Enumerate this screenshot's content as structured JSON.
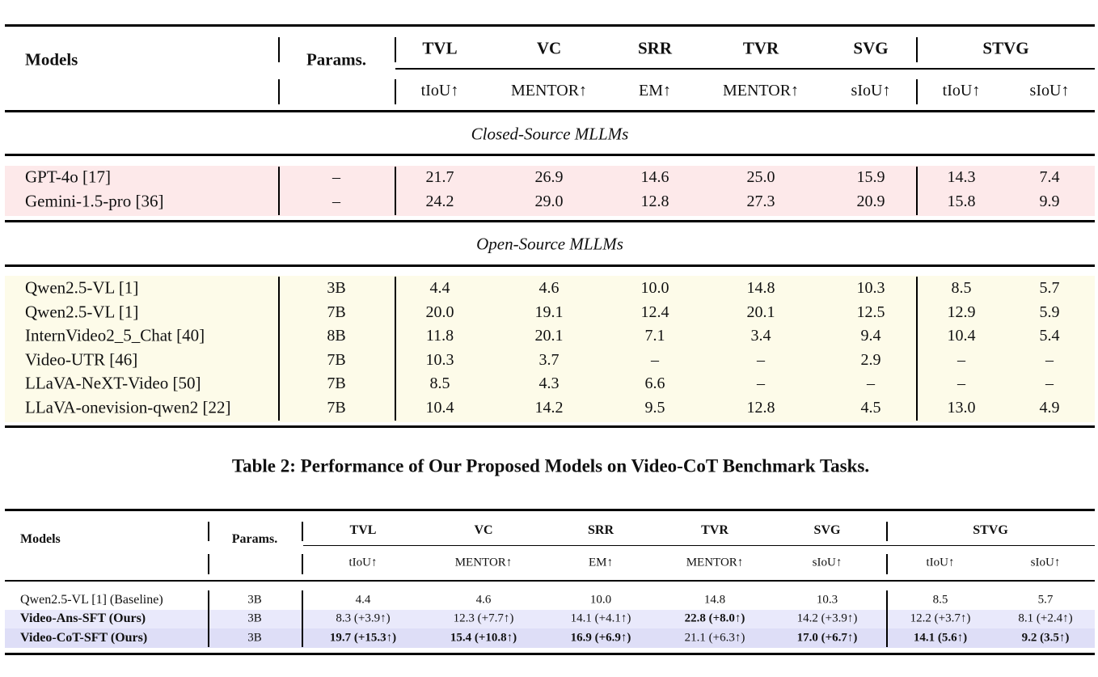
{
  "table1": {
    "head": {
      "models": "Models",
      "params": "Params.",
      "tasks": [
        "TVL",
        "VC",
        "SRR",
        "TVR",
        "SVG",
        "STVG"
      ],
      "metrics": [
        "tIoU↑",
        "MENTOR↑",
        "EM↑",
        "MENTOR↑",
        "sIoU↑",
        "tIoU↑",
        "sIoU↑"
      ]
    },
    "sections": [
      {
        "title": "Closed-Source MLLMs",
        "color": "#fde9ea",
        "rows": [
          {
            "model": "GPT-4o [17]",
            "params": "–",
            "vals": [
              "21.7",
              "26.9",
              "14.6",
              "25.0",
              "15.9",
              "14.3",
              "7.4"
            ]
          },
          {
            "model": "Gemini-1.5-pro [36]",
            "params": "–",
            "vals": [
              "24.2",
              "29.0",
              "12.8",
              "27.3",
              "20.9",
              "15.8",
              "9.9"
            ]
          }
        ]
      },
      {
        "title": "Open-Source MLLMs",
        "color": "#fdfbe9",
        "rows": [
          {
            "model": "Qwen2.5-VL [1]",
            "params": "3B",
            "vals": [
              "4.4",
              "4.6",
              "10.0",
              "14.8",
              "10.3",
              "8.5",
              "5.7"
            ]
          },
          {
            "model": "Qwen2.5-VL [1]",
            "params": "7B",
            "vals": [
              "20.0",
              "19.1",
              "12.4",
              "20.1",
              "12.5",
              "12.9",
              "5.9"
            ]
          },
          {
            "model": "InternVideo2_5_Chat [40]",
            "params": "8B",
            "vals": [
              "11.8",
              "20.1",
              "7.1",
              "3.4",
              "9.4",
              "10.4",
              "5.4"
            ]
          },
          {
            "model": "Video-UTR [46]",
            "params": "7B",
            "vals": [
              "10.3",
              "3.7",
              "–",
              "–",
              "2.9",
              "–",
              "–"
            ]
          },
          {
            "model": "LLaVA-NeXT-Video [50]",
            "params": "7B",
            "vals": [
              "8.5",
              "4.3",
              "6.6",
              "–",
              "–",
              "–",
              "–"
            ]
          },
          {
            "model": "LLaVA-onevision-qwen2 [22]",
            "params": "7B",
            "vals": [
              "10.4",
              "14.2",
              "9.5",
              "12.8",
              "4.5",
              "13.0",
              "4.9"
            ]
          }
        ]
      }
    ]
  },
  "caption": "Table 2: Performance of Our Proposed Models on Video-CoT Benchmark Tasks.",
  "table2": {
    "head": {
      "models": "Models",
      "params": "Params.",
      "tasks": [
        "TVL",
        "VC",
        "SRR",
        "TVR",
        "SVG",
        "STVG"
      ],
      "metrics": [
        "tIoU↑",
        "MENTOR↑",
        "EM↑",
        "MENTOR↑",
        "sIoU↑",
        "tIoU↑",
        "sIoU↑"
      ]
    },
    "highlight_color": "#e9e9fb",
    "highlight_color_strong": "#dedef7",
    "rows": [
      {
        "model": "Qwen2.5-VL [1] (Baseline)",
        "bold_model": false,
        "params": "3B",
        "vals": [
          "4.4",
          "4.6",
          "10.0",
          "14.8",
          "10.3",
          "8.5",
          "5.7"
        ],
        "bold": [
          false,
          false,
          false,
          false,
          false,
          false,
          false
        ]
      },
      {
        "model": "Video-Ans-SFT (Ours)",
        "bold_model": true,
        "params": "3B",
        "vals": [
          "8.3 (+3.9↑)",
          "12.3 (+7.7↑)",
          "14.1 (+4.1↑)",
          "22.8 (+8.0↑)",
          "14.2 (+3.9↑)",
          "12.2 (+3.7↑)",
          "8.1 (+2.4↑)"
        ],
        "bold": [
          false,
          false,
          false,
          true,
          false,
          false,
          false
        ]
      },
      {
        "model": "Video-CoT-SFT (Ours)",
        "bold_model": true,
        "params": "3B",
        "vals": [
          "19.7 (+15.3↑)",
          "15.4 (+10.8↑)",
          "16.9 (+6.9↑)",
          "21.1 (+6.3↑)",
          "17.0 (+6.7↑)",
          "14.1 (5.6↑)",
          "9.2 (3.5↑)"
        ],
        "bold": [
          true,
          true,
          true,
          false,
          true,
          true,
          true
        ]
      }
    ]
  }
}
